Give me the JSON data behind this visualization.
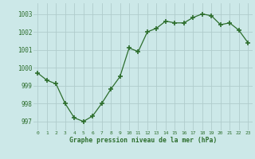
{
  "x": [
    0,
    1,
    2,
    3,
    4,
    5,
    6,
    7,
    8,
    9,
    10,
    11,
    12,
    13,
    14,
    15,
    16,
    17,
    18,
    19,
    20,
    21,
    22,
    23
  ],
  "y": [
    999.7,
    999.3,
    999.1,
    998.0,
    997.2,
    997.0,
    997.3,
    998.0,
    998.8,
    999.5,
    1001.1,
    1000.9,
    1002.0,
    1002.2,
    1002.6,
    1002.5,
    1002.5,
    1002.8,
    1003.0,
    1002.9,
    1002.4,
    1002.5,
    1002.1,
    1001.4
  ],
  "line_color": "#2d6e2d",
  "marker_color": "#2d6e2d",
  "bg_color": "#cce8e8",
  "grid_color": "#b0cccc",
  "xlabel": "Graphe pression niveau de la mer (hPa)",
  "xlabel_color": "#2d6e2d",
  "yticks": [
    997,
    998,
    999,
    1000,
    1001,
    1002,
    1003
  ],
  "xtick_labels": [
    "0",
    "1",
    "2",
    "3",
    "4",
    "5",
    "6",
    "7",
    "8",
    "9",
    "10",
    "11",
    "12",
    "13",
    "14",
    "15",
    "16",
    "17",
    "18",
    "19",
    "20",
    "21",
    "22",
    "23"
  ],
  "ylim": [
    996.5,
    1003.6
  ],
  "xlim": [
    -0.5,
    23.5
  ]
}
